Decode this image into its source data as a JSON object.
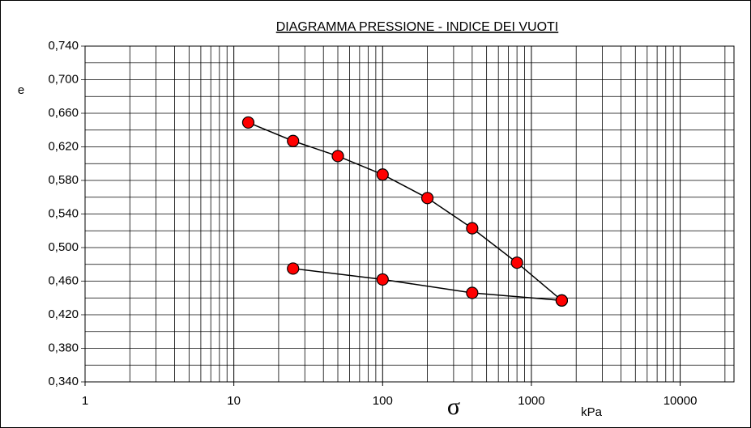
{
  "chart_data": {
    "type": "line",
    "title": "DIAGRAMMA  PRESSIONE - INDICE DEI VUOTI",
    "y_label": "e",
    "x_label": "σ",
    "x_unit": "kPa",
    "x_log": true,
    "grid": true,
    "xlim": [
      1,
      23000
    ],
    "ylim": [
      0.34,
      0.74
    ],
    "xticks": [
      1,
      10,
      100,
      1000,
      10000
    ],
    "minor_xticks": [
      2,
      3,
      4,
      5,
      6,
      7,
      8,
      9,
      20,
      30,
      40,
      50,
      60,
      70,
      80,
      90,
      200,
      300,
      400,
      500,
      600,
      700,
      800,
      900,
      2000,
      3000,
      4000,
      5000,
      6000,
      7000,
      8000,
      9000,
      20000
    ],
    "yticks": [
      {
        "value": 0.34,
        "label": "0,340"
      },
      {
        "value": 0.38,
        "label": "0,380"
      },
      {
        "value": 0.42,
        "label": "0,420"
      },
      {
        "value": 0.46,
        "label": "0,460"
      },
      {
        "value": 0.5,
        "label": "0,500"
      },
      {
        "value": 0.54,
        "label": "0,540"
      },
      {
        "value": 0.58,
        "label": "0,580"
      },
      {
        "value": 0.62,
        "label": "0,620"
      },
      {
        "value": 0.66,
        "label": "0,660"
      },
      {
        "value": 0.7,
        "label": "0,700"
      },
      {
        "value": 0.74,
        "label": "0,740"
      }
    ],
    "minor_yticks": [
      0.36,
      0.4,
      0.44,
      0.48,
      0.52,
      0.56,
      0.6,
      0.64,
      0.68,
      0.72
    ],
    "series": [
      {
        "color": "#ff0000",
        "x": [
          12.5,
          25,
          50,
          100,
          200,
          400,
          800,
          1600
        ],
        "values": [
          0.649,
          0.627,
          0.609,
          0.587,
          0.559,
          0.523,
          0.482,
          0.437
        ]
      },
      {
        "color": "#ff0000",
        "x": [
          25,
          100,
          400,
          1600
        ],
        "values": [
          0.475,
          0.462,
          0.446,
          0.437
        ]
      }
    ]
  }
}
